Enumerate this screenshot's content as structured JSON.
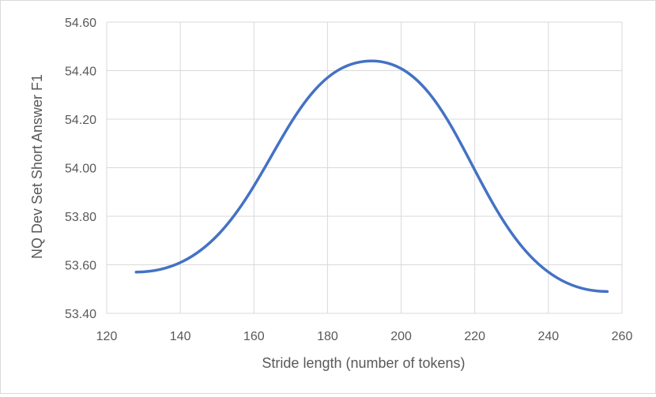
{
  "chart_data": {
    "type": "line",
    "title": "",
    "xlabel": "Stride length (number of tokens)",
    "ylabel": "NQ Dev Set Short Answer F1",
    "xlim": [
      120,
      260
    ],
    "ylim": [
      53.4,
      54.6
    ],
    "x_ticks": [
      120,
      140,
      160,
      180,
      200,
      220,
      240,
      260
    ],
    "y_ticks": [
      "53.40",
      "53.60",
      "53.80",
      "54.00",
      "54.20",
      "54.40",
      "54.60"
    ],
    "grid": true,
    "legend": "none",
    "series": [
      {
        "color": "#4472c4",
        "smooth": true,
        "x": [
          128,
          192,
          256
        ],
        "y": [
          53.57,
          54.44,
          53.49
        ]
      }
    ]
  }
}
